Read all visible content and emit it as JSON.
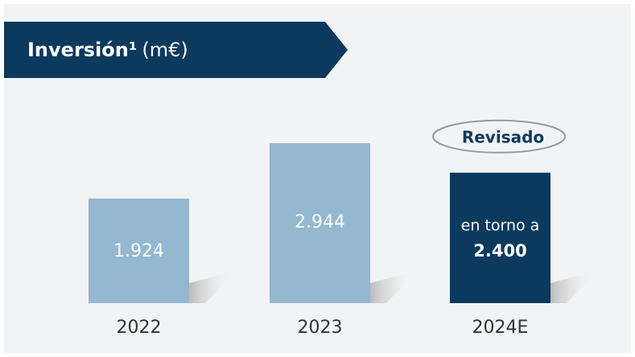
{
  "chart_data": {
    "type": "bar",
    "title": "Inversión¹",
    "unit": "(m€)",
    "categories": [
      "2022",
      "2023",
      "2024E"
    ],
    "values": [
      1924,
      2944,
      2400
    ],
    "value_labels": [
      "1.924",
      "2.944",
      "2.400"
    ],
    "colors": [
      "#94b8d0",
      "#94b8d0",
      "#0b3a5e"
    ],
    "annotations": [
      "en torno a",
      "Revisado"
    ]
  }
}
